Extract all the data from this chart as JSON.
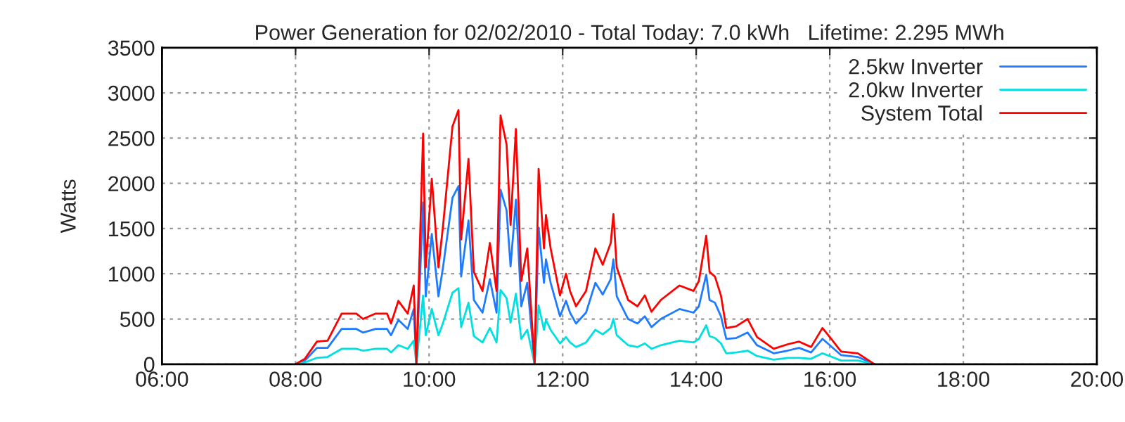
{
  "chart_data": {
    "type": "line",
    "title": "Power Generation for 02/02/2010 - Total Today: 7.0 kWh   Lifetime: 2.295 MWh",
    "ylabel": "Watts",
    "x": [
      8.0,
      8.14,
      8.32,
      8.48,
      8.69,
      8.91,
      9.01,
      9.2,
      9.37,
      9.43,
      9.54,
      9.68,
      9.77,
      9.81,
      9.91,
      9.95,
      10.04,
      10.14,
      10.21,
      10.35,
      10.44,
      10.48,
      10.59,
      10.67,
      10.8,
      10.91,
      11.01,
      11.07,
      11.16,
      11.22,
      11.3,
      11.38,
      11.47,
      11.58,
      11.64,
      11.72,
      11.75,
      11.82,
      11.96,
      12.05,
      12.11,
      12.2,
      12.35,
      12.49,
      12.6,
      12.72,
      12.76,
      12.81,
      12.98,
      13.12,
      13.23,
      13.33,
      13.47,
      13.75,
      13.96,
      14.04,
      14.15,
      14.2,
      14.28,
      14.37,
      14.45,
      14.6,
      14.77,
      14.91,
      15.16,
      15.37,
      15.54,
      15.72,
      15.89,
      16.0,
      16.17,
      16.42,
      16.67
    ],
    "series": [
      {
        "name": "2.5kw Inverter",
        "color": "#1e7bff",
        "values": [
          0,
          40,
          180,
          180,
          390,
          390,
          350,
          390,
          390,
          320,
          490,
          390,
          610,
          0,
          1790,
          750,
          1440,
          750,
          1080,
          1840,
          1970,
          970,
          1590,
          710,
          570,
          940,
          570,
          1930,
          1700,
          1080,
          1820,
          640,
          900,
          0,
          1510,
          900,
          1160,
          900,
          530,
          700,
          570,
          450,
          570,
          900,
          770,
          940,
          1160,
          750,
          500,
          450,
          530,
          410,
          500,
          610,
          570,
          640,
          990,
          710,
          680,
          530,
          280,
          290,
          350,
          210,
          120,
          150,
          180,
          130,
          280,
          210,
          100,
          80,
          0
        ]
      },
      {
        "name": "2.0kw Inverter",
        "color": "#00e0e0",
        "values": [
          0,
          20,
          70,
          80,
          170,
          170,
          150,
          170,
          170,
          130,
          210,
          170,
          260,
          0,
          760,
          320,
          610,
          320,
          460,
          790,
          840,
          410,
          680,
          310,
          240,
          400,
          240,
          820,
          730,
          460,
          780,
          280,
          380,
          0,
          650,
          380,
          490,
          380,
          230,
          300,
          240,
          190,
          240,
          380,
          330,
          400,
          500,
          320,
          210,
          190,
          230,
          170,
          210,
          260,
          240,
          280,
          430,
          310,
          290,
          230,
          120,
          130,
          150,
          90,
          50,
          70,
          70,
          60,
          120,
          90,
          40,
          40,
          0
        ]
      },
      {
        "name": "System Total",
        "color": "#ff0000",
        "values": [
          0,
          60,
          250,
          260,
          560,
          560,
          500,
          560,
          560,
          450,
          700,
          560,
          870,
          0,
          2550,
          1070,
          2050,
          1070,
          1540,
          2630,
          2810,
          1380,
          2270,
          1020,
          810,
          1340,
          810,
          2750,
          2430,
          1540,
          2600,
          920,
          1280,
          0,
          2160,
          1280,
          1650,
          1280,
          760,
          1000,
          810,
          640,
          810,
          1280,
          1100,
          1340,
          1660,
          1070,
          710,
          640,
          760,
          580,
          710,
          870,
          810,
          920,
          1420,
          1020,
          970,
          760,
          400,
          420,
          500,
          300,
          170,
          220,
          250,
          190,
          400,
          300,
          140,
          120,
          0
        ]
      }
    ],
    "xlim": [
      6,
      20
    ],
    "xticks": [
      {
        "value": 6,
        "label": "06:00"
      },
      {
        "value": 8,
        "label": "08:00"
      },
      {
        "value": 10,
        "label": "10:00"
      },
      {
        "value": 12,
        "label": "12:00"
      },
      {
        "value": 14,
        "label": "14:00"
      },
      {
        "value": 16,
        "label": "16:00"
      },
      {
        "value": 18,
        "label": "18:00"
      },
      {
        "value": 20,
        "label": "20:00"
      }
    ],
    "ylim": [
      0,
      3500
    ],
    "yticks": [
      0,
      500,
      1000,
      1500,
      2000,
      2500,
      3000,
      3500
    ],
    "grid": true,
    "legend": "top right",
    "line_style": "solid",
    "marker": "none"
  }
}
